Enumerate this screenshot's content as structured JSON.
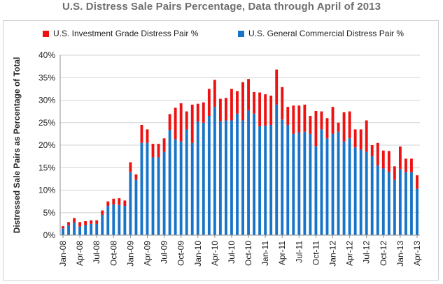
{
  "title": "U.S. Distress Sale Pairs Percentage, Data through April of 2013",
  "legend": {
    "investment": "U.S. Investment Grade Distress Pair %",
    "commercial": "U.S. General Commercial Distress Pair %"
  },
  "colors": {
    "investment": "#ee1111",
    "commercial": "#1874c8",
    "grid": "#d3d3d3",
    "axis": "#8f8f8f"
  },
  "chart_data": {
    "type": "bar",
    "stacked": true,
    "title": "U.S. Distress Sale Pairs Percentage, Data through April of 2013",
    "ylabel": "Distressed Sale Pairs as Percentage of Total",
    "xlabel": "",
    "ylim": [
      0,
      40
    ],
    "yticks": [
      0,
      5,
      10,
      15,
      20,
      25,
      30,
      35,
      40
    ],
    "ytick_labels": [
      "0%",
      "5%",
      "10%",
      "15%",
      "20%",
      "25%",
      "30%",
      "35%",
      "40%"
    ],
    "grid": true,
    "legend_position": "top",
    "categories": [
      "Jan-08",
      "Feb-08",
      "Mar-08",
      "Apr-08",
      "May-08",
      "Jun-08",
      "Jul-08",
      "Aug-08",
      "Sep-08",
      "Oct-08",
      "Nov-08",
      "Dec-08",
      "Jan-09",
      "Feb-09",
      "Mar-09",
      "Apr-09",
      "May-09",
      "Jun-09",
      "Jul-09",
      "Aug-09",
      "Sep-09",
      "Oct-09",
      "Nov-09",
      "Dec-09",
      "Jan-10",
      "Feb-10",
      "Mar-10",
      "Apr-10",
      "May-10",
      "Jun-10",
      "Jul-10",
      "Aug-10",
      "Sep-10",
      "Oct-10",
      "Nov-10",
      "Dec-10",
      "Jan-11",
      "Feb-11",
      "Mar-11",
      "Apr-11",
      "May-11",
      "Jun-11",
      "Jul-11",
      "Aug-11",
      "Sep-11",
      "Oct-11",
      "Nov-11",
      "Dec-11",
      "Jan-12",
      "Feb-12",
      "Mar-12",
      "Apr-12",
      "May-12",
      "Jun-12",
      "Jul-12",
      "Aug-12",
      "Sep-12",
      "Oct-12",
      "Nov-12",
      "Dec-12",
      "Jan-13",
      "Feb-13",
      "Mar-13",
      "Apr-13"
    ],
    "tick_labels": [
      "Jan-08",
      "Apr-08",
      "Jul-08",
      "Oct-08",
      "Jan-09",
      "Apr-09",
      "Jul-09",
      "Oct-09",
      "Jan-10",
      "Apr-10",
      "Jul-10",
      "Oct-10",
      "Jan-11",
      "Apr-11",
      "Jul-11",
      "Oct-11",
      "Jan-12",
      "Apr-12",
      "Jul-12",
      "Oct-12",
      "Jan-13",
      "Apr-13"
    ],
    "series": [
      {
        "name": "U.S. General Commercial Distress Pair %",
        "values": [
          1.5,
          2.2,
          2.8,
          1.9,
          2.2,
          2.5,
          2.5,
          4.5,
          6.5,
          6.8,
          6.7,
          6.5,
          14.0,
          12.3,
          20.5,
          20.5,
          17.3,
          17.3,
          18.5,
          23.4,
          21.3,
          20.8,
          23.5,
          20.5,
          25.2,
          25.0,
          26.5,
          28.5,
          25.3,
          25.5,
          25.5,
          27.0,
          25.5,
          27.7,
          27.0,
          24.2,
          24.3,
          24.5,
          29.0,
          25.7,
          24.5,
          22.5,
          22.8,
          23.0,
          22.5,
          19.8,
          23.5,
          21.5,
          22.5,
          23.0,
          20.8,
          21.5,
          19.5,
          19.0,
          18.5,
          17.5,
          15.5,
          14.8,
          14.0,
          12.3,
          14.7,
          14.0,
          14.0,
          10.3
        ]
      },
      {
        "name": "U.S. Investment Grade Distress Pair %",
        "values": [
          0.5,
          0.7,
          1.0,
          1.0,
          0.9,
          0.8,
          0.8,
          1.0,
          1.0,
          1.3,
          1.5,
          1.2,
          2.2,
          1.2,
          4.0,
          3.0,
          3.0,
          3.0,
          3.0,
          3.5,
          7.0,
          8.5,
          4.0,
          8.5,
          4.0,
          4.5,
          6.0,
          6.0,
          5.0,
          5.0,
          7.0,
          5.0,
          8.5,
          7.0,
          4.8,
          7.5,
          7.0,
          6.5,
          7.8,
          7.2,
          4.0,
          6.3,
          6.0,
          6.0,
          4.0,
          7.8,
          4.0,
          4.5,
          6.0,
          2.0,
          6.5,
          6.0,
          4.0,
          4.5,
          7.0,
          2.5,
          5.0,
          4.0,
          4.7,
          3.0,
          5.0,
          3.0,
          3.0,
          3.0
        ]
      }
    ]
  }
}
